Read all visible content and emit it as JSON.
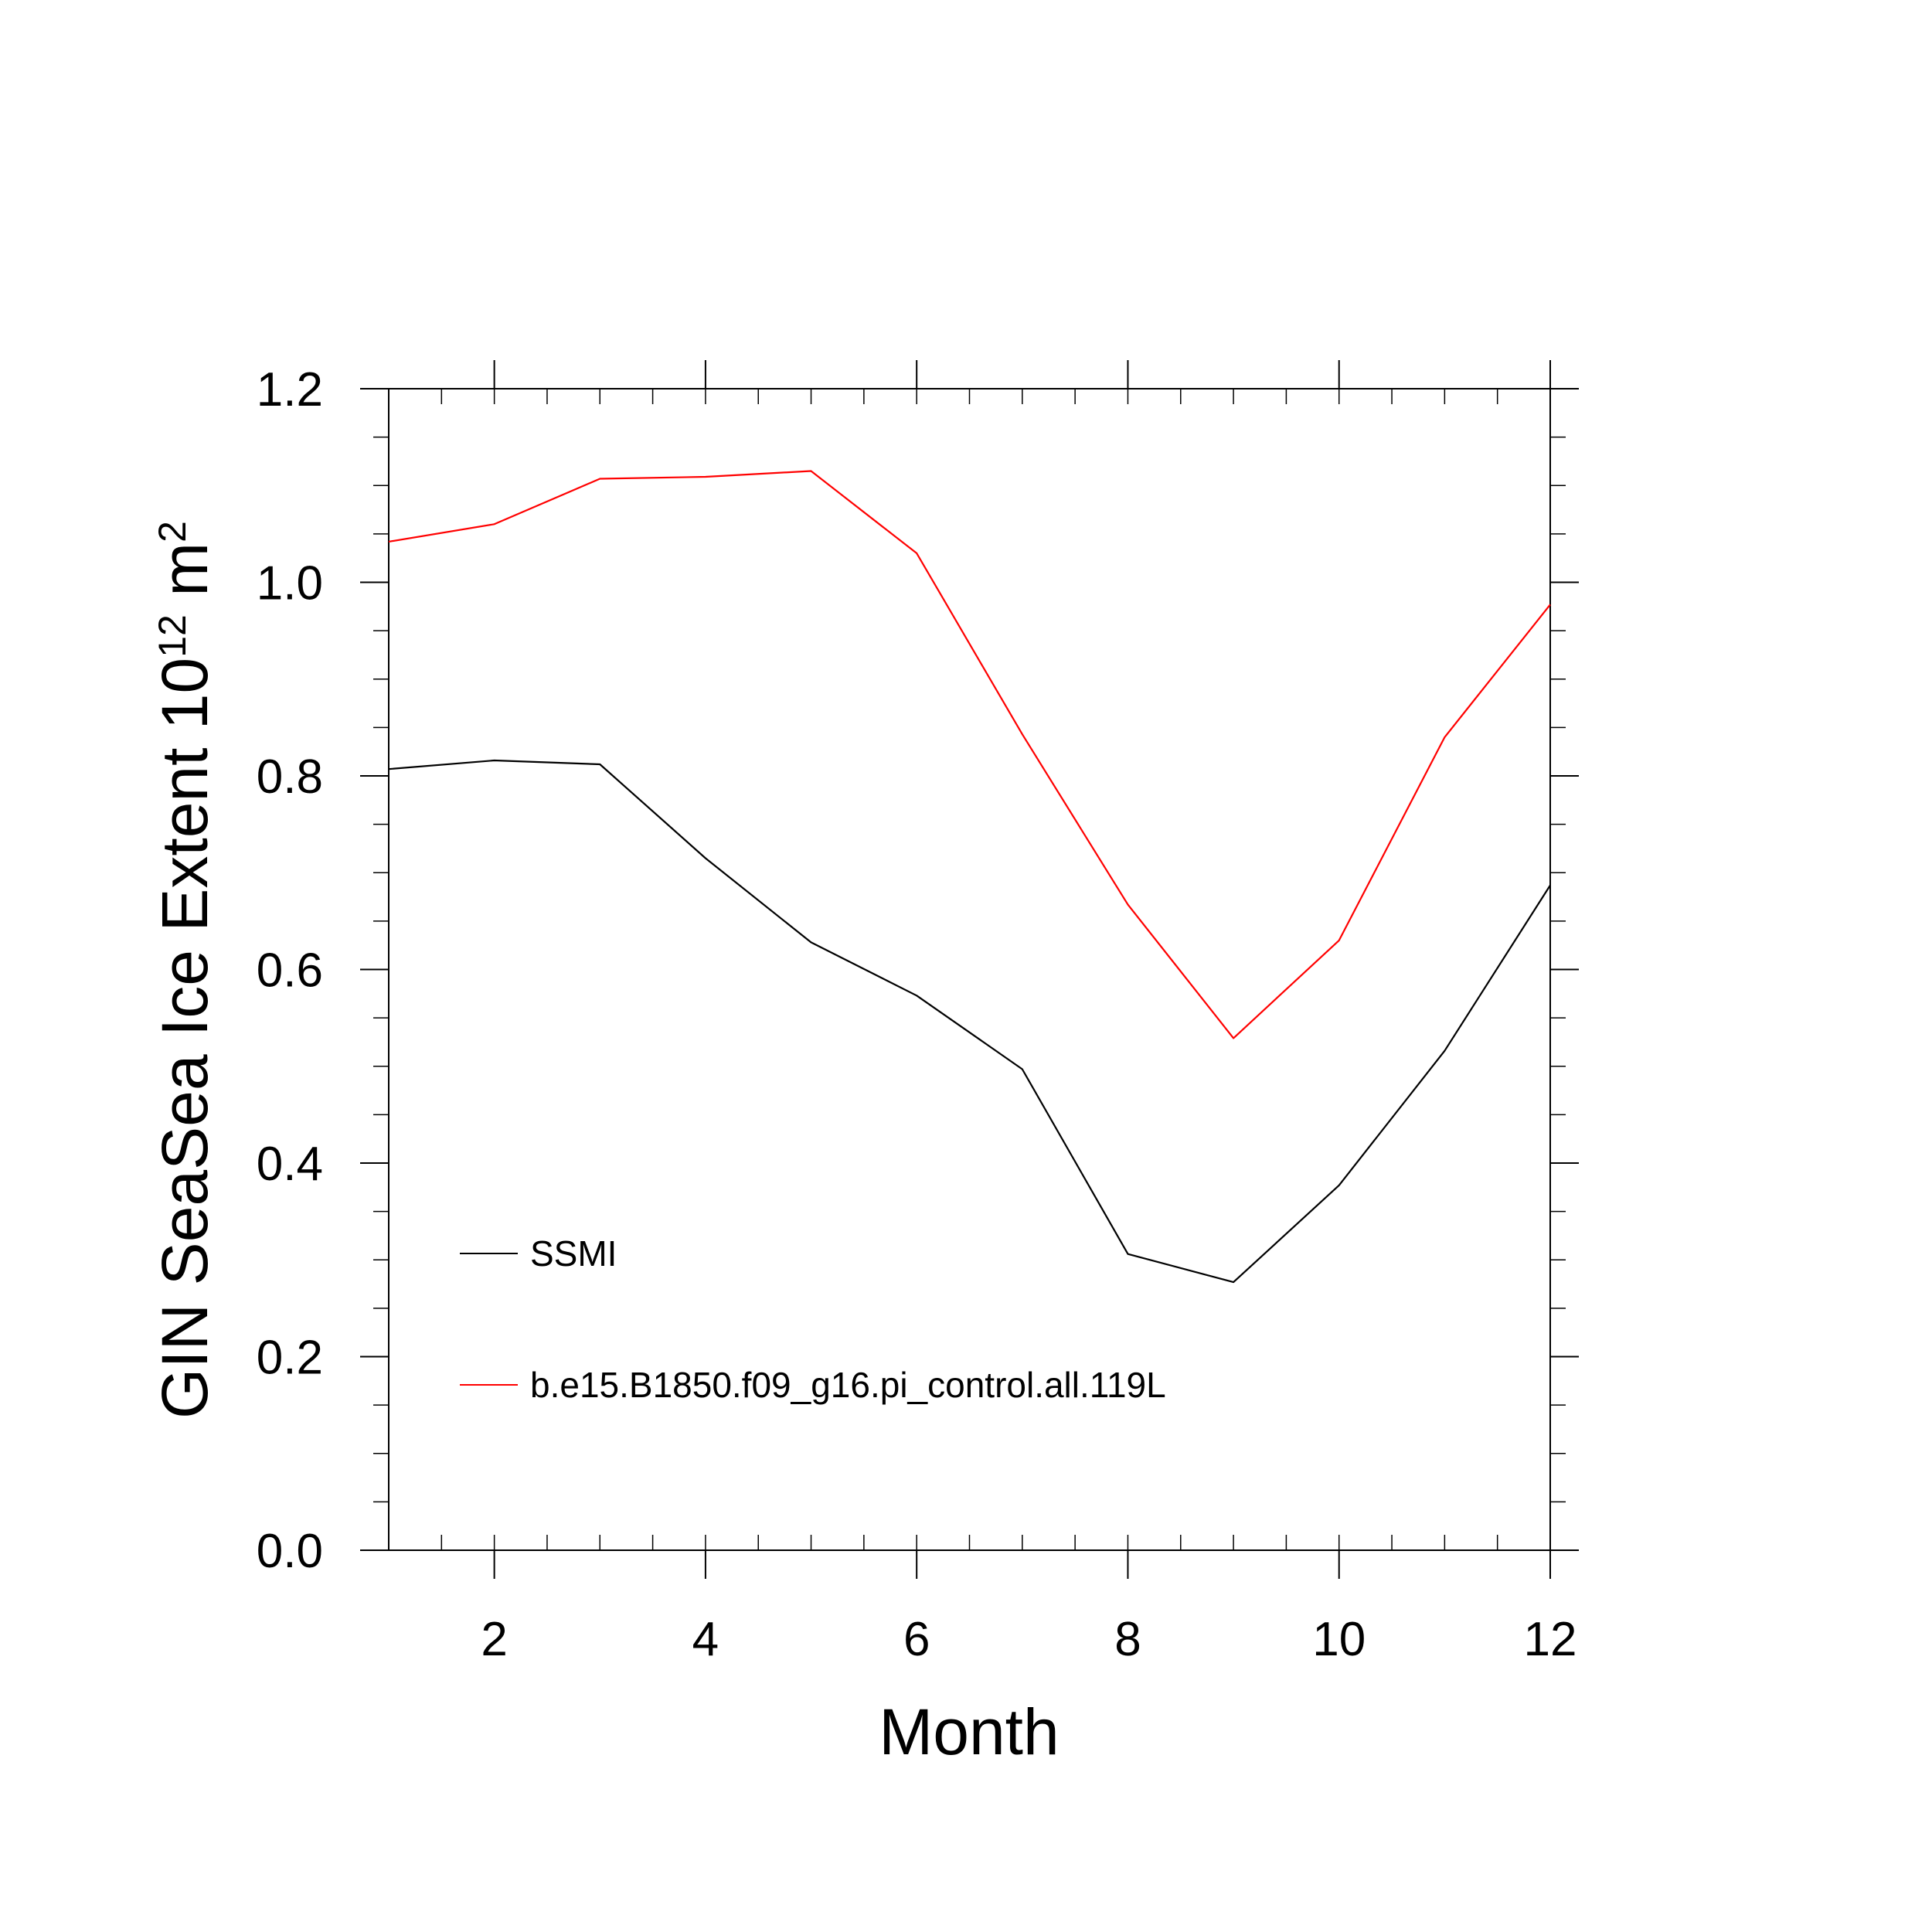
{
  "chart_data": {
    "type": "line",
    "title": "",
    "xlabel": "Month",
    "ylabel": "GIN SeaSea Ice Extent 10",
    "ylabel_exp": "12",
    "ylabel_unit": " m",
    "ylabel_unit_exp": "2",
    "xlim": [
      1,
      12
    ],
    "ylim": [
      0.0,
      1.2
    ],
    "x_ticks": [
      2,
      4,
      6,
      8,
      10,
      12
    ],
    "x_tick_labels": [
      "2",
      "4",
      "6",
      "8",
      "10",
      "12"
    ],
    "y_ticks": [
      0.0,
      0.2,
      0.4,
      0.6,
      0.8,
      1.0,
      1.2
    ],
    "y_tick_labels": [
      "0.0",
      "0.2",
      "0.4",
      "0.6",
      "0.8",
      "1.0",
      "1.2"
    ],
    "grid": false,
    "legend_position": "bottom-left",
    "x": [
      1,
      2,
      3,
      4,
      5,
      6,
      7,
      8,
      9,
      10,
      11,
      12
    ],
    "series": [
      {
        "name": "SSMI",
        "color": "#000000",
        "values": [
          0.807,
          0.816,
          0.812,
          0.715,
          0.628,
          0.573,
          0.497,
          0.306,
          0.277,
          0.377,
          0.516,
          0.687
        ]
      },
      {
        "name": "b.e15.B1850.f09_g16.pi_control.all.119L",
        "color": "#ff0000",
        "values": [
          1.042,
          1.06,
          1.107,
          1.109,
          1.115,
          1.03,
          0.843,
          0.667,
          0.529,
          0.63,
          0.84,
          0.977
        ]
      }
    ]
  }
}
